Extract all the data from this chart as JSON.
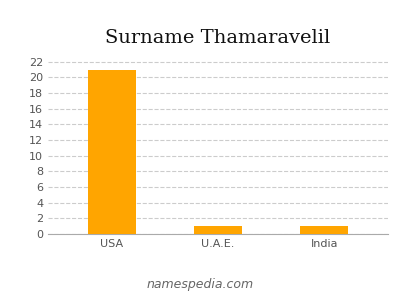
{
  "title": "Surname Thamaravelil",
  "categories": [
    "USA",
    "U.A.E.",
    "India"
  ],
  "values": [
    21,
    1,
    1
  ],
  "bar_color": "#FFA500",
  "ylim": [
    0,
    23
  ],
  "yticks": [
    0,
    2,
    4,
    6,
    8,
    10,
    12,
    14,
    16,
    18,
    20,
    22
  ],
  "grid_color": "#cccccc",
  "background_color": "#ffffff",
  "title_fontsize": 14,
  "tick_fontsize": 8,
  "footer_text": "namespedia.com",
  "footer_fontsize": 9,
  "bar_width": 0.45
}
